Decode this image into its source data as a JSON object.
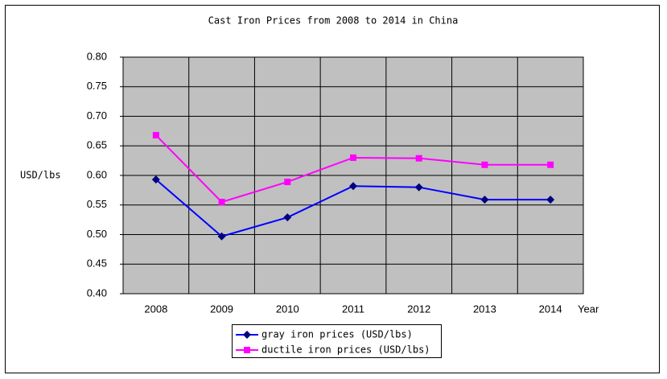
{
  "chart_data": {
    "type": "line",
    "title": "Cast Iron Prices from 2008 to 2014 in China",
    "x_label": "Year",
    "y_label": "USD/lbs",
    "categories": [
      "2008",
      "2009",
      "2010",
      "2011",
      "2012",
      "2013",
      "2014"
    ],
    "series": [
      {
        "name": "gray iron prices (USD/lbs)",
        "color": "#0000ff",
        "marker_color": "#000080",
        "marker": "diamond",
        "values": [
          0.593,
          0.497,
          0.529,
          0.582,
          0.58,
          0.559,
          0.559
        ]
      },
      {
        "name": "ductile iron prices (USD/lbs)",
        "color": "#ff00ff",
        "marker_color": "#ff00ff",
        "marker": "square",
        "values": [
          0.668,
          0.555,
          0.589,
          0.63,
          0.629,
          0.618,
          0.618
        ]
      }
    ],
    "ylim": [
      0.4,
      0.8
    ],
    "yticks": [
      {
        "value": 0.4,
        "label": "0.40"
      },
      {
        "value": 0.45,
        "label": "0.45"
      },
      {
        "value": 0.5,
        "label": "0.50"
      },
      {
        "value": 0.55,
        "label": "0.55"
      },
      {
        "value": 0.6,
        "label": "0.60"
      },
      {
        "value": 0.65,
        "label": "0.65"
      },
      {
        "value": 0.7,
        "label": "0.70"
      },
      {
        "value": 0.75,
        "label": "0.75"
      },
      {
        "value": 0.8,
        "label": "0.80"
      }
    ],
    "grid": true,
    "plot_background": "#c0c0c0"
  }
}
